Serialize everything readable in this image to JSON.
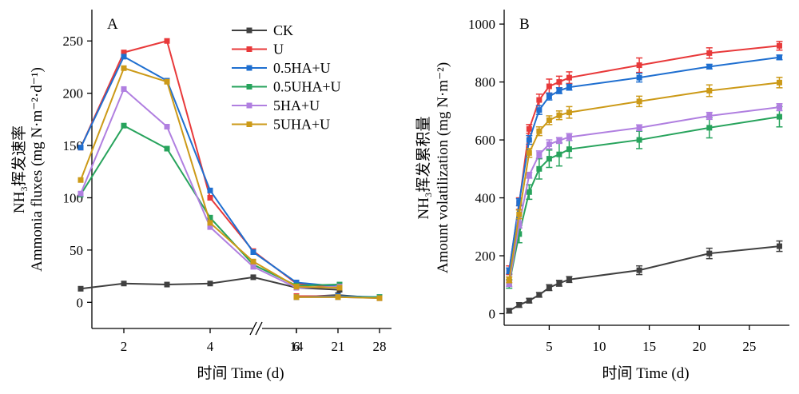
{
  "chart_data": [
    {
      "type": "line",
      "panel_label": "A",
      "ylabel_cn": "NH₃挥发速率",
      "ylabel_en": "Ammonia fluxes (mg N·m⁻²·d⁻¹)",
      "xlabel": "时间 Time (d)",
      "x": [
        1,
        2,
        3,
        4,
        5,
        6,
        7,
        14,
        21,
        28
      ],
      "x_tick_labels": [
        "2",
        "4",
        "6",
        "14",
        "21",
        "28"
      ],
      "axis_break": "between 7 and 14",
      "ylim": [
        -25,
        280
      ],
      "y_ticks": [
        "0",
        "50",
        "100",
        "150",
        "200",
        "250"
      ],
      "series": [
        {
          "name": "CK",
          "color": "#404040",
          "values": [
            13,
            18,
            17,
            18,
            24,
            14,
            12,
            5,
            7,
            4
          ]
        },
        {
          "name": "U",
          "color": "#e8393a",
          "values": [
            148,
            239,
            250,
            100,
            49,
            18,
            14,
            6,
            6,
            4
          ]
        },
        {
          "name": "0.5HA+U",
          "color": "#1f6fd0",
          "values": [
            148,
            235,
            212,
            107,
            48,
            19,
            15,
            5,
            6,
            5
          ]
        },
        {
          "name": "0.5UHA+U",
          "color": "#27a35c",
          "values": [
            103,
            169,
            147,
            81,
            36,
            16,
            17,
            5,
            5,
            5
          ]
        },
        {
          "name": "5HA+U",
          "color": "#b07fe0",
          "values": [
            104,
            204,
            168,
            72,
            34,
            14,
            15,
            5,
            5,
            4
          ]
        },
        {
          "name": "5UHA+U",
          "color": "#cc9a18",
          "values": [
            117,
            224,
            211,
            76,
            39,
            15,
            14,
            5,
            5,
            4
          ]
        }
      ]
    },
    {
      "type": "line",
      "panel_label": "B",
      "ylabel_cn": "NH₃挥发累积量",
      "ylabel_en": "Amount volatilization (mg N·m⁻²)",
      "xlabel": "时间 Time (d)",
      "x": [
        1,
        2,
        3,
        4,
        5,
        6,
        7,
        14,
        21,
        28
      ],
      "xlim": [
        0.5,
        29
      ],
      "x_ticks": [
        "5",
        "10",
        "15",
        "20",
        "25"
      ],
      "ylim": [
        -40,
        1050
      ],
      "y_ticks": [
        "0",
        "200",
        "400",
        "600",
        "800",
        "1000"
      ],
      "series": [
        {
          "name": "CK",
          "color": "#404040",
          "values": [
            10,
            30,
            45,
            65,
            90,
            105,
            118,
            150,
            208,
            233
          ],
          "error": [
            8,
            8,
            8,
            8,
            10,
            10,
            10,
            15,
            18,
            18
          ]
        },
        {
          "name": "U",
          "color": "#e8393a",
          "values": [
            150,
            380,
            638,
            738,
            785,
            800,
            815,
            858,
            900,
            925
          ],
          "error": [
            15,
            20,
            15,
            20,
            25,
            20,
            20,
            25,
            18,
            15
          ]
        },
        {
          "name": "0.5HA+U",
          "color": "#1f6fd0",
          "values": [
            148,
            385,
            600,
            703,
            750,
            770,
            782,
            815,
            853,
            885
          ],
          "error": [
            10,
            12,
            15,
            15,
            12,
            10,
            10,
            15,
            8,
            8
          ]
        },
        {
          "name": "0.5UHA+U",
          "color": "#27a35c",
          "values": [
            103,
            275,
            420,
            500,
            535,
            550,
            568,
            600,
            642,
            680
          ],
          "error": [
            15,
            30,
            25,
            35,
            30,
            40,
            30,
            30,
            35,
            35
          ]
        },
        {
          "name": "5HA+U",
          "color": "#b07fe0",
          "values": [
            104,
            308,
            478,
            550,
            585,
            598,
            610,
            642,
            683,
            713
          ],
          "error": [
            10,
            12,
            10,
            12,
            15,
            10,
            12,
            10,
            12,
            12
          ]
        },
        {
          "name": "5UHA+U",
          "color": "#cc9a18",
          "values": [
            117,
            343,
            555,
            630,
            668,
            685,
            695,
            733,
            770,
            798
          ],
          "error": [
            10,
            15,
            15,
            15,
            15,
            15,
            20,
            18,
            20,
            18
          ]
        }
      ]
    }
  ]
}
